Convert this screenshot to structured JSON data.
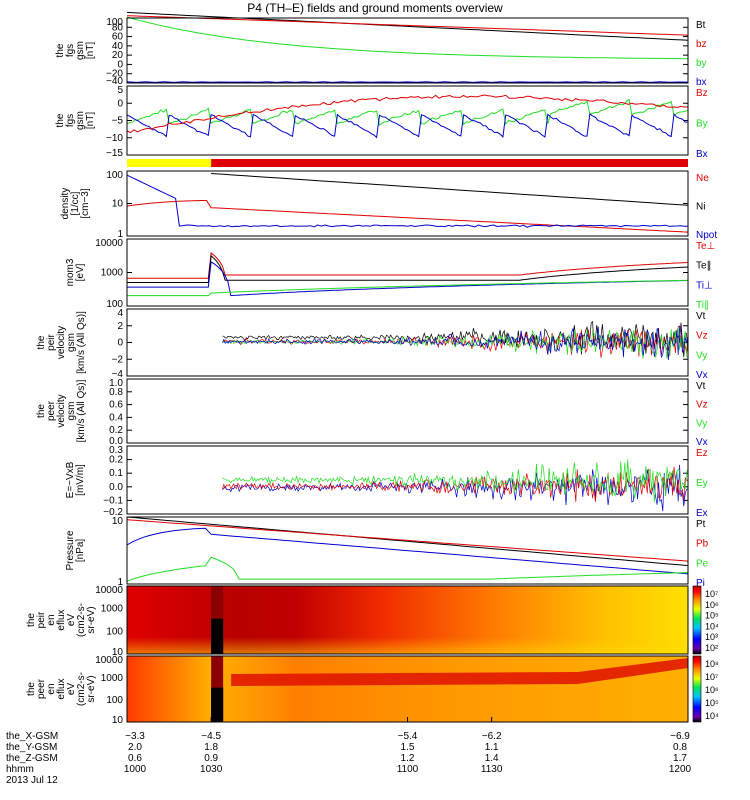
{
  "title": "P4 (TH–E) fields and ground moments overview",
  "colors": {
    "black": "#000000",
    "red": "#e00000",
    "green": "#22dd22",
    "blue": "#0000cc",
    "yellow": "#ffff00"
  },
  "chart_data": [
    {
      "type": "line",
      "ylabel_lines": [
        "the",
        "fgs",
        "gsm",
        "[nT]"
      ],
      "yticks": [
        "100",
        "80",
        "60",
        "40",
        "20",
        "0",
        "−20",
        "−40"
      ],
      "ylim": [
        -40,
        100
      ],
      "legend": [
        {
          "name": "Bt",
          "color": "black"
        },
        {
          "name": "bz",
          "color": "red"
        },
        {
          "name": "by",
          "color": "green"
        },
        {
          "name": "bx",
          "color": "blue"
        }
      ]
    },
    {
      "type": "line",
      "ylabel_lines": [
        "the",
        "fgs",
        "gsm",
        "[nT]"
      ],
      "yticks": [
        "5",
        "0",
        "−5",
        "−10",
        "−15"
      ],
      "ylim": [
        -17,
        7
      ],
      "legend": [
        {
          "name": "Bz",
          "color": "red"
        },
        {
          "name": "By",
          "color": "green"
        },
        {
          "name": "Bx",
          "color": "blue"
        }
      ]
    },
    {
      "type": "line",
      "ylabel_lines": [
        "density",
        "[1/cc]",
        "[cm−3]"
      ],
      "yticks": [
        "100",
        "10",
        "1"
      ],
      "ylim": [
        0.1,
        300
      ],
      "legend": [
        {
          "name": "Ne",
          "color": "red"
        },
        {
          "name": "Ni",
          "color": "black"
        },
        {
          "name": "Npot",
          "color": "blue"
        }
      ]
    },
    {
      "type": "line",
      "ylabel_lines": [
        "mom3",
        "[eV]"
      ],
      "yticks": [
        "10000",
        "1000",
        "100"
      ],
      "ylim": [
        80,
        15000
      ],
      "legend": [
        {
          "name": "Te⊥",
          "color": "red"
        },
        {
          "name": "Te∥",
          "color": "black"
        },
        {
          "name": "Ti⊥",
          "color": "blue"
        },
        {
          "name": "Ti∥",
          "color": "green"
        }
      ]
    },
    {
      "type": "line",
      "ylabel_lines": [
        "the",
        "peir",
        "velocity",
        "gsm",
        "[km/s (All Qs)]"
      ],
      "yticks": [
        "4",
        "2",
        "0",
        "−2",
        "−4"
      ],
      "ylim": [
        -4,
        4
      ],
      "legend": [
        {
          "name": "Vt",
          "color": "black"
        },
        {
          "name": "Vz",
          "color": "red"
        },
        {
          "name": "Vy",
          "color": "green"
        },
        {
          "name": "Vx",
          "color": "blue"
        }
      ]
    },
    {
      "type": "line",
      "ylabel_lines": [
        "the",
        "peer",
        "velocity",
        "gsm",
        "[km/s (All Qs)]"
      ],
      "yticks": [
        "1.0",
        "0.8",
        "0.6",
        "0.4",
        "0.2",
        "0.0"
      ],
      "ylim": [
        0,
        1
      ],
      "legend": [
        {
          "name": "Vt",
          "color": "black"
        },
        {
          "name": "Vz",
          "color": "red"
        },
        {
          "name": "Vy",
          "color": "green"
        },
        {
          "name": "Vx",
          "color": "blue"
        }
      ]
    },
    {
      "type": "line",
      "ylabel_lines": [
        "E=−VxB",
        "[mV/m]"
      ],
      "yticks": [
        "0.3",
        "0.2",
        "0.1",
        "0.0",
        "−0.1",
        "−0.2"
      ],
      "ylim": [
        -0.22,
        0.32
      ],
      "legend": [
        {
          "name": "Ez",
          "color": "red"
        },
        {
          "name": "Ey",
          "color": "green"
        },
        {
          "name": "Ex",
          "color": "blue"
        }
      ]
    },
    {
      "type": "line",
      "ylabel_lines": [
        "Pressure",
        "[nPa]"
      ],
      "yticks": [
        "10",
        "1"
      ],
      "ylim": [
        0.2,
        50
      ],
      "legend": [
        {
          "name": "Pt",
          "color": "black"
        },
        {
          "name": "Pb",
          "color": "red"
        },
        {
          "name": "Pe",
          "color": "green"
        },
        {
          "name": "Pi",
          "color": "blue"
        }
      ]
    },
    {
      "type": "heatmap",
      "ylabel_lines": [
        "the",
        "peir",
        "en",
        "eflux",
        "eV",
        "(cm2-s-",
        "sr-eV)"
      ],
      "yticks": [
        "10000",
        "1000",
        "100",
        "10"
      ],
      "colorbar_ticks": [
        "10⁷",
        "10⁶",
        "10⁵",
        "10⁴",
        "10³",
        "10²"
      ]
    },
    {
      "type": "heatmap",
      "ylabel_lines": [
        "the",
        "peer",
        "en",
        "eflux",
        "eV",
        "(cm2-s-",
        "sr-eV)"
      ],
      "yticks": [
        "10000",
        "1000",
        "100",
        "10"
      ],
      "colorbar_ticks": [
        "10⁸",
        "10⁷",
        "10⁶",
        "10⁵",
        "10⁴"
      ]
    }
  ],
  "xaxis": {
    "rows": [
      {
        "label": "the_X-GSM",
        "values": [
          "−3.3",
          "−4.5",
          "−5.4",
          "−6.2",
          "−6.9"
        ]
      },
      {
        "label": "the_Y-GSM",
        "values": [
          "2.0",
          "1.8",
          "1.5",
          "1.1",
          "0.8"
        ]
      },
      {
        "label": "the_Z-GSM",
        "values": [
          "0.6",
          "0.9",
          "1.2",
          "1.4",
          "1.7"
        ]
      },
      {
        "label": "hhmm",
        "values": [
          "1000",
          "1030",
          "1100",
          "1130",
          "1200"
        ]
      }
    ],
    "date": "2013 Jul 12"
  },
  "mode_bar": [
    {
      "color": "yellow",
      "until_hhmm": 1030
    },
    {
      "color": "red",
      "until_hhmm": 1200
    }
  ]
}
